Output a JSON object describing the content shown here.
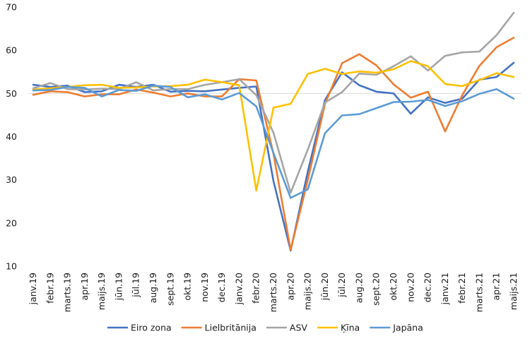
{
  "chart_data": {
    "type": "line",
    "title": "",
    "xlabel": "",
    "ylabel": "",
    "ylim": [
      10,
      70
    ],
    "yticks": [
      10,
      20,
      30,
      40,
      50,
      60,
      70
    ],
    "grid": "horizontal line at 50 only",
    "legend_position": "bottom",
    "categories": [
      "janv.19",
      "febr.19",
      "marts.19",
      "apr.19",
      "maijs.19",
      "jūn.19",
      "jūl.19",
      "aug.19",
      "sept.19",
      "okt.19",
      "nov.19",
      "dec.19",
      "janv.20",
      "febr.20",
      "marts.20",
      "apr.20",
      "maijs.20",
      "jūn.20",
      "jūl.20",
      "aug.20",
      "sept.20",
      "okt.20",
      "nov.20",
      "dec.20",
      "janv.21",
      "febr.21",
      "marts.21",
      "apr.21",
      "maijs.21"
    ],
    "series": [
      {
        "name": "Eiro zona",
        "color": "#4472c4",
        "values": [
          52.0,
          51.5,
          51.8,
          50.3,
          50.5,
          52.0,
          51.5,
          52.0,
          50.4,
          50.6,
          50.5,
          50.9,
          51.3,
          51.6,
          29.7,
          13.6,
          31.9,
          48.5,
          54.9,
          51.9,
          50.4,
          50.0,
          45.3,
          49.1,
          47.8,
          48.8,
          53.2,
          53.8,
          57.1
        ]
      },
      {
        "name": "Lielbritānija",
        "color": "#ed7d31",
        "values": [
          49.7,
          50.5,
          50.3,
          49.3,
          49.8,
          49.8,
          50.9,
          50.2,
          49.3,
          50.0,
          49.3,
          49.3,
          53.3,
          53.0,
          36.0,
          13.8,
          30.0,
          47.6,
          57.0,
          59.1,
          56.5,
          52.1,
          49.0,
          50.4,
          41.2,
          49.6,
          56.4,
          60.7,
          62.9
        ]
      },
      {
        "name": "ASV",
        "color": "#a5a5a5",
        "values": [
          51.2,
          52.4,
          51.0,
          50.9,
          51.1,
          51.0,
          52.6,
          50.7,
          51.0,
          51.0,
          52.0,
          52.6,
          53.3,
          49.6,
          40.9,
          27.0,
          37.0,
          47.9,
          50.3,
          54.6,
          54.3,
          56.3,
          58.6,
          55.3,
          58.7,
          59.5,
          59.7,
          63.5,
          68.7
        ]
      },
      {
        "name": "Ķīna",
        "color": "#ffc000",
        "values": [
          50.9,
          51.2,
          51.5,
          51.9,
          52.0,
          51.3,
          51.4,
          51.6,
          51.7,
          52.0,
          53.2,
          52.6,
          51.9,
          27.5,
          46.7,
          47.6,
          54.5,
          55.7,
          54.5,
          55.1,
          54.8,
          55.6,
          57.5,
          56.3,
          52.2,
          51.7,
          53.1,
          54.7,
          53.8
        ]
      },
      {
        "name": "Japāna",
        "color": "#5b9bd5",
        "values": [
          50.7,
          50.8,
          51.5,
          51.3,
          49.3,
          50.8,
          50.6,
          51.8,
          51.5,
          49.1,
          49.8,
          48.6,
          50.1,
          47.0,
          36.2,
          25.8,
          27.8,
          40.8,
          44.9,
          45.2,
          46.6,
          48.0,
          48.1,
          48.5,
          47.1,
          48.2,
          49.9,
          51.0,
          48.8
        ]
      }
    ]
  }
}
